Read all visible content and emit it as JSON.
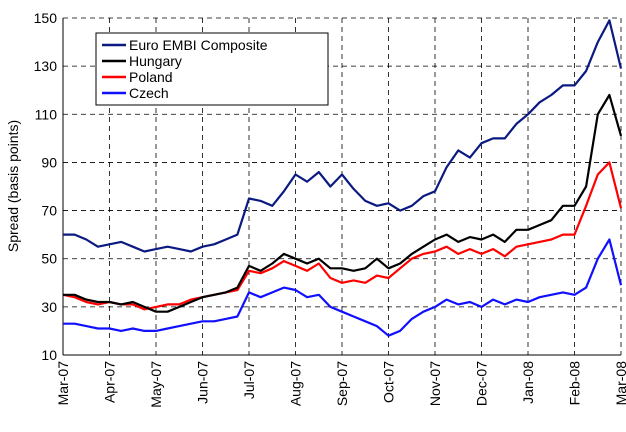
{
  "chart_data": {
    "type": "line",
    "y_label": "Spread (basis points)",
    "categories": [
      "Mar-07",
      null,
      null,
      null,
      "Apr-07",
      null,
      null,
      null,
      "May-07",
      null,
      null,
      null,
      "Jun-07",
      null,
      null,
      null,
      "Jul-07",
      null,
      null,
      null,
      "Aug-07",
      null,
      null,
      null,
      "Sep-07",
      null,
      null,
      null,
      "Oct-07",
      null,
      null,
      null,
      "Nov-07",
      null,
      null,
      null,
      "Dec-07",
      null,
      null,
      null,
      "Jan-08",
      null,
      null,
      null,
      "Feb-08",
      null,
      null,
      null,
      "Mar-08"
    ],
    "series": [
      {
        "name": "Euro EMBI Composite",
        "color": "#0a1a80",
        "values": [
          60,
          60,
          58,
          55,
          56,
          57,
          55,
          53,
          54,
          55,
          54,
          53,
          55,
          56,
          58,
          60,
          75,
          74,
          72,
          78,
          85,
          82,
          86,
          80,
          85,
          79,
          74,
          72,
          73,
          70,
          72,
          76,
          78,
          88,
          95,
          92,
          98,
          100,
          100,
          106,
          110,
          115,
          118,
          122,
          122,
          128,
          140,
          149,
          129
        ]
      },
      {
        "name": "Hungary",
        "color": "#000000",
        "values": [
          35,
          35,
          33,
          32,
          32,
          31,
          32,
          30,
          28,
          28,
          30,
          32,
          34,
          35,
          36,
          38,
          47,
          45,
          48,
          52,
          50,
          48,
          50,
          46,
          46,
          45,
          46,
          50,
          46,
          48,
          52,
          55,
          58,
          60,
          57,
          59,
          58,
          60,
          57,
          62,
          62,
          64,
          66,
          72,
          72,
          80,
          110,
          118,
          101
        ]
      },
      {
        "name": "Poland",
        "color": "#ff0000",
        "values": [
          35,
          34,
          32,
          31,
          32,
          31,
          31,
          29,
          30,
          31,
          31,
          33,
          34,
          35,
          36,
          37,
          45,
          44,
          46,
          49,
          47,
          45,
          48,
          42,
          40,
          41,
          40,
          43,
          42,
          46,
          50,
          52,
          53,
          55,
          52,
          54,
          52,
          54,
          51,
          55,
          56,
          57,
          58,
          60,
          60,
          72,
          85,
          90,
          71
        ]
      },
      {
        "name": "Czech",
        "color": "#1010ff",
        "values": [
          23,
          23,
          22,
          21,
          21,
          20,
          21,
          20,
          20,
          21,
          22,
          23,
          24,
          24,
          25,
          26,
          36,
          34,
          36,
          38,
          37,
          34,
          35,
          30,
          28,
          26,
          24,
          22,
          18,
          20,
          25,
          28,
          30,
          33,
          31,
          32,
          30,
          33,
          31,
          33,
          32,
          34,
          35,
          36,
          35,
          38,
          50,
          58,
          39
        ]
      }
    ],
    "ylim": [
      10,
      150
    ],
    "yticks": [
      10,
      30,
      50,
      70,
      90,
      110,
      130,
      150
    ],
    "grid": true,
    "legend": "upper-left"
  }
}
